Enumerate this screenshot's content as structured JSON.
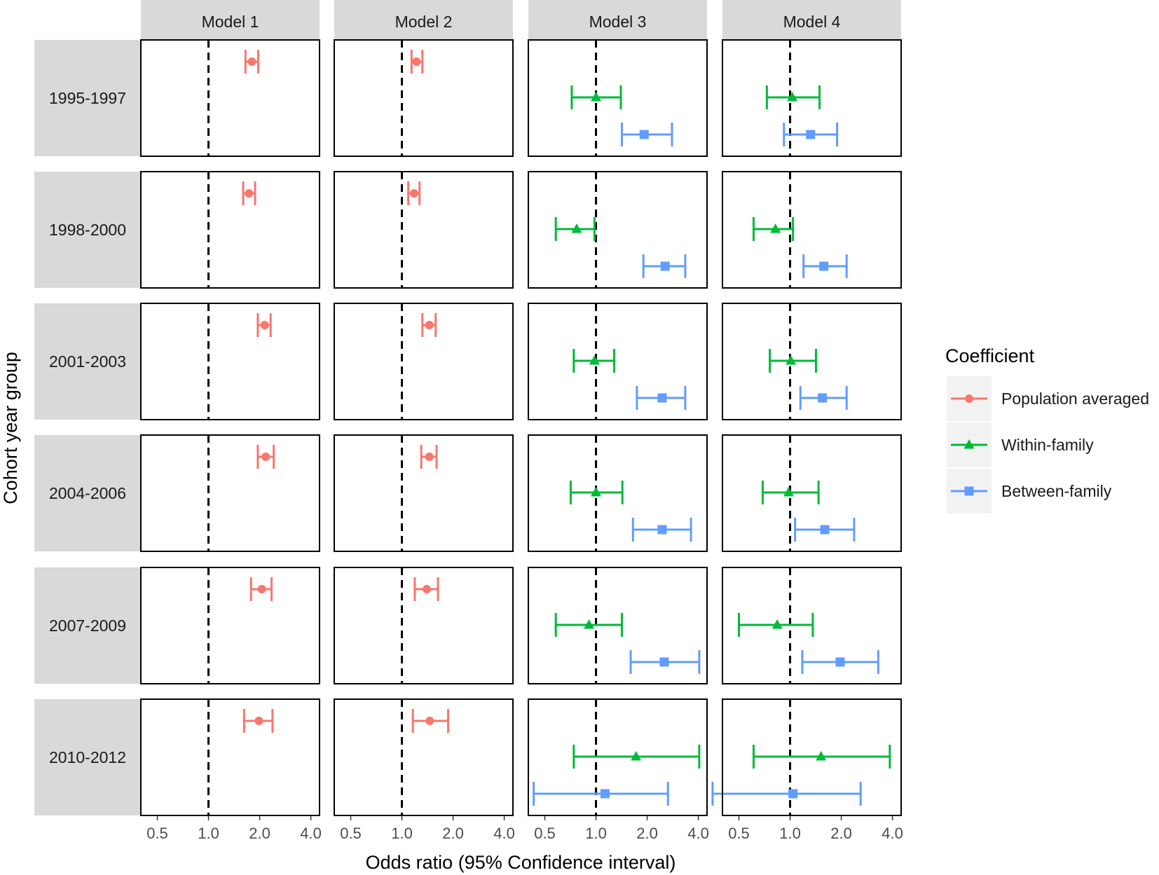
{
  "chart_data": {
    "type": "forest",
    "scale": "log2",
    "xlim": [
      0.4,
      4.5
    ],
    "xticks": [
      0.5,
      1.0,
      2.0,
      4.0
    ],
    "xtick_labels": [
      "0.5",
      "1.0",
      "2.0",
      "4.0"
    ],
    "reference_line": 1.0,
    "xlabel": "Odds ratio (95% Confidence interval)",
    "ylabel": "Cohort year group",
    "models": [
      "Model 1",
      "Model 2",
      "Model 3",
      "Model 4"
    ],
    "cohorts": [
      "1995-1997",
      "1998-2000",
      "2001-2003",
      "2004-2006",
      "2007-2009",
      "2010-2012"
    ],
    "legend": {
      "title": "Coefficient",
      "items": [
        {
          "key": "pop",
          "label": "Population averaged",
          "color": "#F8766D",
          "shape": "circle"
        },
        {
          "key": "within",
          "label": "Within-family",
          "color": "#00BA38",
          "shape": "triangle"
        },
        {
          "key": "between",
          "label": "Between-family",
          "color": "#619CFF",
          "shape": "square"
        }
      ]
    },
    "series": {
      "pop": {
        "Model 1": [
          {
            "est": 1.8,
            "lo": 1.65,
            "hi": 1.96
          },
          {
            "est": 1.73,
            "lo": 1.6,
            "hi": 1.88
          },
          {
            "est": 2.14,
            "lo": 1.95,
            "hi": 2.32
          },
          {
            "est": 2.17,
            "lo": 1.95,
            "hi": 2.42
          },
          {
            "est": 2.06,
            "lo": 1.78,
            "hi": 2.35
          },
          {
            "est": 1.98,
            "lo": 1.62,
            "hi": 2.38
          }
        ],
        "Model 2": [
          {
            "est": 1.22,
            "lo": 1.14,
            "hi": 1.32
          },
          {
            "est": 1.18,
            "lo": 1.09,
            "hi": 1.27
          },
          {
            "est": 1.45,
            "lo": 1.32,
            "hi": 1.58
          },
          {
            "est": 1.45,
            "lo": 1.3,
            "hi": 1.6
          },
          {
            "est": 1.4,
            "lo": 1.19,
            "hi": 1.63
          },
          {
            "est": 1.46,
            "lo": 1.16,
            "hi": 1.87
          }
        ]
      },
      "within": {
        "Model 3": [
          {
            "est": 1.0,
            "lo": 0.72,
            "hi": 1.4
          },
          {
            "est": 0.77,
            "lo": 0.58,
            "hi": 0.98
          },
          {
            "est": 0.98,
            "lo": 0.74,
            "hi": 1.28
          },
          {
            "est": 1.0,
            "lo": 0.71,
            "hi": 1.43
          },
          {
            "est": 0.91,
            "lo": 0.58,
            "hi": 1.42
          },
          {
            "est": 1.72,
            "lo": 0.74,
            "hi": 4.05
          }
        ],
        "Model 4": [
          {
            "est": 1.03,
            "lo": 0.73,
            "hi": 1.49
          },
          {
            "est": 0.82,
            "lo": 0.61,
            "hi": 1.04
          },
          {
            "est": 1.01,
            "lo": 0.76,
            "hi": 1.42
          },
          {
            "est": 0.98,
            "lo": 0.69,
            "hi": 1.47
          },
          {
            "est": 0.84,
            "lo": 0.5,
            "hi": 1.36
          },
          {
            "est": 1.52,
            "lo": 0.61,
            "hi": 3.86
          }
        ]
      },
      "between": {
        "Model 3": [
          {
            "est": 1.92,
            "lo": 1.42,
            "hi": 2.8
          },
          {
            "est": 2.55,
            "lo": 1.9,
            "hi": 3.35
          },
          {
            "est": 2.45,
            "lo": 1.74,
            "hi": 3.35
          },
          {
            "est": 2.45,
            "lo": 1.65,
            "hi": 3.62
          },
          {
            "est": 2.52,
            "lo": 1.6,
            "hi": 4.05
          },
          {
            "est": 1.13,
            "lo": 0.43,
            "hi": 2.65
          }
        ],
        "Model 4": [
          {
            "est": 1.32,
            "lo": 0.92,
            "hi": 1.89
          },
          {
            "est": 1.58,
            "lo": 1.2,
            "hi": 2.15
          },
          {
            "est": 1.55,
            "lo": 1.15,
            "hi": 2.15
          },
          {
            "est": 1.6,
            "lo": 1.07,
            "hi": 2.38
          },
          {
            "est": 1.97,
            "lo": 1.18,
            "hi": 3.3
          },
          {
            "est": 1.04,
            "lo": 0.35,
            "hi": 2.6
          }
        ]
      }
    }
  }
}
